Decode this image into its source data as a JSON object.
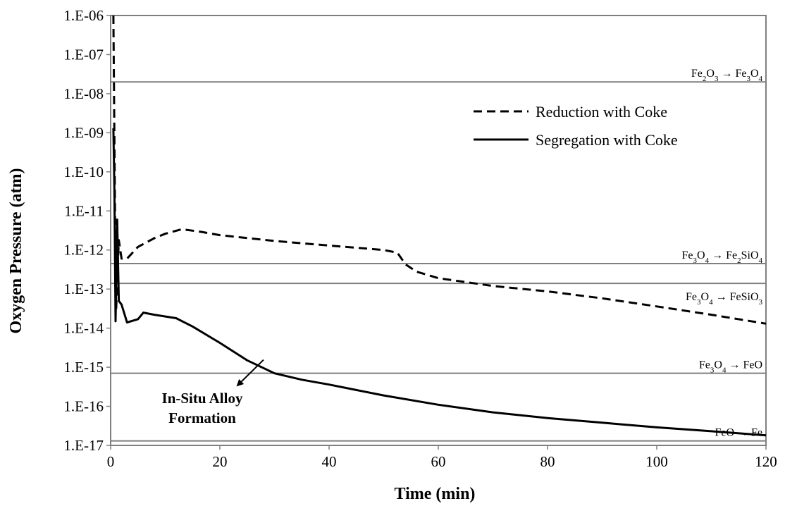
{
  "chart_data": {
    "type": "line",
    "title": "",
    "xlabel": "Time (min)",
    "ylabel": "Oxygen Pressure (atm)",
    "xlim": [
      0,
      120
    ],
    "ylim": [
      1e-17,
      1e-06
    ],
    "yscale": "log",
    "grid": false,
    "legend_position": "upper-right",
    "x_ticks": [
      {
        "value": 0,
        "label": "0"
      },
      {
        "value": 20,
        "label": "20"
      },
      {
        "value": 40,
        "label": "40"
      },
      {
        "value": 60,
        "label": "60"
      },
      {
        "value": 80,
        "label": "80"
      },
      {
        "value": 100,
        "label": "100"
      },
      {
        "value": 120,
        "label": "120"
      }
    ],
    "y_ticks": [
      {
        "value": 1e-06,
        "label": "1.E-06"
      },
      {
        "value": 1e-07,
        "label": "1.E-07"
      },
      {
        "value": 1e-08,
        "label": "1.E-08"
      },
      {
        "value": 1e-09,
        "label": "1.E-09"
      },
      {
        "value": 1e-10,
        "label": "1.E-10"
      },
      {
        "value": 1e-11,
        "label": "1.E-11"
      },
      {
        "value": 1e-12,
        "label": "1.E-12"
      },
      {
        "value": 1e-13,
        "label": "1.E-13"
      },
      {
        "value": 1e-14,
        "label": "1.E-14"
      },
      {
        "value": 1e-15,
        "label": "1.E-15"
      },
      {
        "value": 1e-16,
        "label": "1.E-16"
      },
      {
        "value": 1e-17,
        "label": "1.E-17"
      }
    ],
    "series": [
      {
        "name": "Reduction with Coke",
        "style": "dashed",
        "color": "#000000",
        "points": [
          [
            0.5,
            1e-06
          ],
          [
            0.8,
            1e-11
          ],
          [
            1.0,
            3e-14
          ],
          [
            1.5,
            1.8e-12
          ],
          [
            2.0,
            6e-13
          ],
          [
            3.0,
            6e-13
          ],
          [
            5.0,
            1.2e-12
          ],
          [
            8.0,
            2e-12
          ],
          [
            10.0,
            2.6e-12
          ],
          [
            13.0,
            3.4e-12
          ],
          [
            16.0,
            3e-12
          ],
          [
            20.0,
            2.4e-12
          ],
          [
            30.0,
            1.7e-12
          ],
          [
            40.0,
            1.3e-12
          ],
          [
            50.0,
            1e-12
          ],
          [
            52.5,
            8.5e-13
          ],
          [
            54.0,
            4.3e-13
          ],
          [
            56.0,
            2.8e-13
          ],
          [
            60.0,
            1.9e-13
          ],
          [
            70.0,
            1.2e-13
          ],
          [
            80.0,
            8.7e-14
          ],
          [
            90.0,
            5.8e-14
          ],
          [
            100.0,
            3.6e-14
          ],
          [
            110.0,
            2.2e-14
          ],
          [
            120.0,
            1.3e-14
          ]
        ]
      },
      {
        "name": "Segregation with Coke",
        "style": "solid",
        "color": "#000000",
        "points": [
          [
            0.5,
            1.3e-09
          ],
          [
            0.7,
            3e-11
          ],
          [
            0.9,
            1.5e-14
          ],
          [
            1.2,
            6e-12
          ],
          [
            1.5,
            5e-14
          ],
          [
            2.0,
            4e-14
          ],
          [
            3.0,
            1.4e-14
          ],
          [
            5.0,
            1.7e-14
          ],
          [
            6.0,
            2.5e-14
          ],
          [
            8.0,
            2.2e-14
          ],
          [
            12.0,
            1.8e-14
          ],
          [
            15.0,
            1.1e-14
          ],
          [
            20.0,
            4.2e-15
          ],
          [
            25.0,
            1.5e-15
          ],
          [
            30.0,
            7e-16
          ],
          [
            35.0,
            4.8e-16
          ],
          [
            40.0,
            3.6e-16
          ],
          [
            50.0,
            1.9e-16
          ],
          [
            60.0,
            1.1e-16
          ],
          [
            70.0,
            7e-17
          ],
          [
            80.0,
            5e-17
          ],
          [
            90.0,
            3.8e-17
          ],
          [
            100.0,
            2.9e-17
          ],
          [
            110.0,
            2.3e-17
          ],
          [
            120.0,
            1.8e-17
          ]
        ]
      }
    ],
    "reference_lines": [
      {
        "value": 2e-08,
        "color": "#7f7f7f",
        "label": {
          "base": [
            [
              "Fe",
              ""
            ],
            [
              "2",
              "sub"
            ],
            [
              "O",
              ""
            ],
            [
              "3",
              "sub"
            ],
            [
              " → Fe",
              ""
            ],
            [
              "3",
              "sub"
            ],
            [
              "O",
              ""
            ],
            [
              "4",
              "sub"
            ]
          ],
          "side": "above"
        }
      },
      {
        "value": 4.5e-13,
        "color": "#7f7f7f",
        "label": {
          "base": [
            [
              "Fe",
              ""
            ],
            [
              "3",
              "sub"
            ],
            [
              "O",
              ""
            ],
            [
              "4",
              "sub"
            ],
            [
              " → Fe",
              ""
            ],
            [
              "2",
              "sub"
            ],
            [
              "SiO",
              ""
            ],
            [
              "4",
              "sub"
            ]
          ],
          "side": "above"
        }
      },
      {
        "value": 1.4e-13,
        "color": "#7f7f7f",
        "label": {
          "base": [
            [
              "Fe",
              ""
            ],
            [
              "3",
              "sub"
            ],
            [
              "O",
              ""
            ],
            [
              "4",
              "sub"
            ],
            [
              " → FeSiO",
              ""
            ],
            [
              "3",
              "sub"
            ]
          ],
          "side": "below"
        }
      },
      {
        "value": 7e-16,
        "color": "#7f7f7f",
        "label": {
          "base": [
            [
              "Fe",
              ""
            ],
            [
              "3",
              "sub"
            ],
            [
              "O",
              ""
            ],
            [
              "4",
              "sub"
            ],
            [
              " → FeO",
              ""
            ]
          ],
          "side": "above"
        }
      },
      {
        "value": 1.3e-17,
        "color": "#7f7f7f",
        "label": {
          "base": [
            [
              "FeO → Fe",
              ""
            ]
          ],
          "side": "above"
        }
      }
    ],
    "annotations": [
      {
        "text_lines": [
          "In-Situ Alloy",
          "Formation"
        ],
        "arrow_to": [
          28,
          1.55e-15
        ]
      }
    ]
  }
}
